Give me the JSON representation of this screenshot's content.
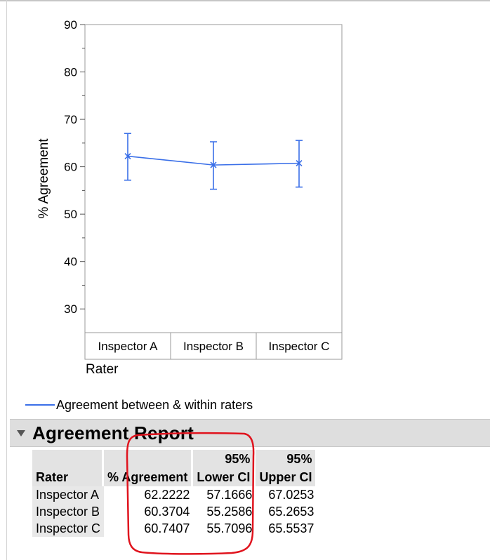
{
  "chart_data": {
    "type": "line",
    "x": [
      "Inspector A",
      "Inspector B",
      "Inspector C"
    ],
    "xlabel": "Rater",
    "ylabel": "% Agreement",
    "ylim": [
      25,
      90
    ],
    "y_ticks": [
      30,
      40,
      50,
      60,
      70,
      80,
      90
    ],
    "grid": false,
    "series": [
      {
        "name": "Agreement between & within raters",
        "color": "#3a6fe8",
        "marker": "x",
        "values": [
          62.2222,
          60.3704,
          60.7407
        ],
        "lower_ci": [
          57.1666,
          55.2586,
          55.7096
        ],
        "upper_ci": [
          67.0253,
          65.2653,
          65.5537
        ]
      }
    ],
    "legend_position": "bottom-left"
  },
  "legend": {
    "label": "Agreement between & within raters",
    "color": "#3a6fe8"
  },
  "report": {
    "title": "Agreement Report",
    "headers": {
      "rater": "Rater",
      "agreement": "% Agreement",
      "lower_top": "95%",
      "lower_bottom": "Lower CI",
      "upper_top": "95%",
      "upper_bottom": "Upper CI"
    },
    "rows": [
      {
        "rater": "Inspector A",
        "agreement": "62.2222",
        "lower": "57.1666",
        "upper": "67.0253"
      },
      {
        "rater": "Inspector B",
        "agreement": "60.3704",
        "lower": "55.2586",
        "upper": "65.2653"
      },
      {
        "rater": "Inspector C",
        "agreement": "60.7407",
        "lower": "55.7096",
        "upper": "65.5537"
      }
    ],
    "highlight_color": "#e0141e"
  }
}
